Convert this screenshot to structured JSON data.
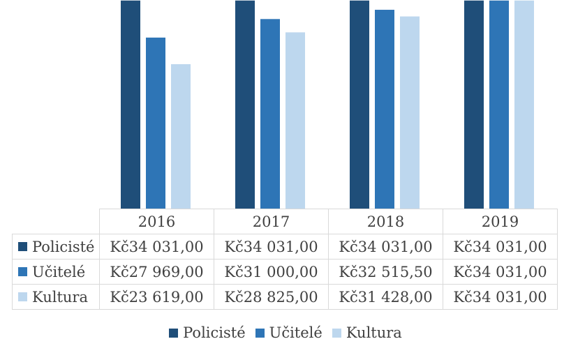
{
  "chart_data": {
    "type": "bar",
    "categories": [
      "2016",
      "2017",
      "2018",
      "2019"
    ],
    "series": [
      {
        "name": "Policisté",
        "values": [
          34031.0,
          34031.0,
          34031.0,
          34031.0
        ],
        "labels": [
          "Kč34 031,00",
          "Kč34 031,00",
          "Kč34 031,00",
          "Kč34 031,00"
        ],
        "color": "#1f4e79"
      },
      {
        "name": "Učitelé",
        "values": [
          27969.0,
          31000.0,
          32515.5,
          34031.0
        ],
        "labels": [
          "Kč27 969,00",
          "Kč31 000,00",
          "Kč32 515,50",
          "Kč34 031,00"
        ],
        "color": "#2e75b6"
      },
      {
        "name": "Kultura",
        "values": [
          23619.0,
          28825.0,
          31428.0,
          34031.0
        ],
        "labels": [
          "Kč23 619,00",
          "Kč28 825,00",
          "Kč31 428,00",
          "Kč34 031,00"
        ],
        "color": "#bdd7ee"
      }
    ],
    "legend_position": "bottom",
    "data_table": true,
    "grid": false
  }
}
